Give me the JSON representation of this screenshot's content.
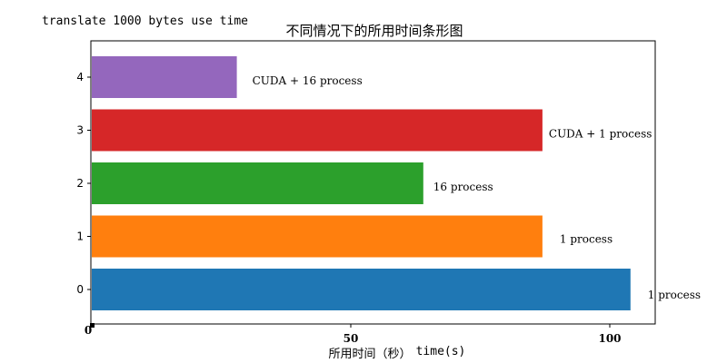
{
  "note": "translate 1000 bytes use time",
  "chart_data": {
    "type": "bar",
    "orientation": "horizontal",
    "title": "不同情况下的所用时间条形图",
    "xlabel_cn": "所用时间（秒）",
    "xlabel_en": "time(s)",
    "categories": [
      "0",
      "1",
      "2",
      "3",
      "4"
    ],
    "values": [
      104,
      87,
      64,
      87,
      28
    ],
    "bar_labels": [
      "1 process",
      "1 process",
      "16 process",
      "CUDA + 1 process",
      "CUDA + 16 process"
    ],
    "colors": [
      "#1f77b4",
      "#ff7f0e",
      "#2ca02c",
      "#d62728",
      "#9467bd"
    ],
    "x_ticks": [
      "0",
      "50",
      "100"
    ],
    "y_ticks": [
      "0",
      "1",
      "2",
      "3",
      "4"
    ],
    "xlim": [
      0,
      109
    ],
    "grid": false,
    "legend": "none"
  }
}
